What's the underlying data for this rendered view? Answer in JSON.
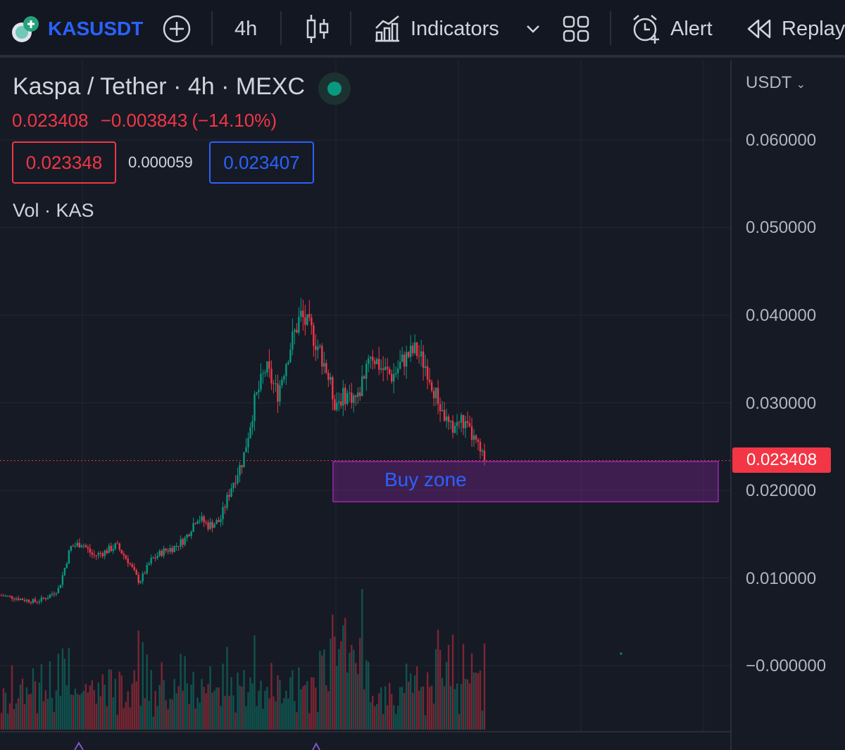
{
  "toolbar": {
    "symbol": "KASUSDT",
    "interval": "4h",
    "indicators_label": "Indicators",
    "alert_label": "Alert",
    "replay_label": "Replay"
  },
  "legend": {
    "title": "Kaspa / Tether · 4h · MEXC",
    "last_price": "0.023408",
    "change": "−0.003843",
    "change_pct": "(−14.10%)",
    "bid": "0.023348",
    "spread": "0.000059",
    "ask": "0.023407",
    "volume_label": "Vol · KAS"
  },
  "price_axis": {
    "currency": "USDT",
    "labels": [
      "0.060000",
      "0.050000",
      "0.040000",
      "0.030000",
      "0.020000",
      "0.010000",
      "−0.000000"
    ],
    "last_price_tag": "0.023408"
  },
  "annotation": {
    "buy_zone_label": "Buy zone"
  },
  "colors": {
    "up": "#089981",
    "down": "#f23645",
    "accent": "#2962ff",
    "zone": "#9c27b0"
  },
  "chart_data": {
    "type": "candlestick",
    "symbol": "KASUSDT",
    "interval": "4h",
    "y_axis": {
      "min": 0,
      "max": 0.06,
      "unit": "USDT"
    },
    "last_price": 0.023408,
    "buy_zone": {
      "low": 0.0187,
      "high": 0.0233
    },
    "close_path": [
      0.008,
      0.0078,
      0.0075,
      0.0073,
      0.0078,
      0.0088,
      0.0135,
      0.014,
      0.0125,
      0.013,
      0.0137,
      0.012,
      0.0095,
      0.012,
      0.013,
      0.0135,
      0.0145,
      0.017,
      0.016,
      0.0165,
      0.0205,
      0.0235,
      0.03,
      0.034,
      0.031,
      0.036,
      0.04,
      0.038,
      0.035,
      0.03,
      0.031,
      0.0305,
      0.036,
      0.034,
      0.033,
      0.035,
      0.036,
      0.034,
      0.03,
      0.027,
      0.028,
      0.026,
      0.0234
    ]
  }
}
